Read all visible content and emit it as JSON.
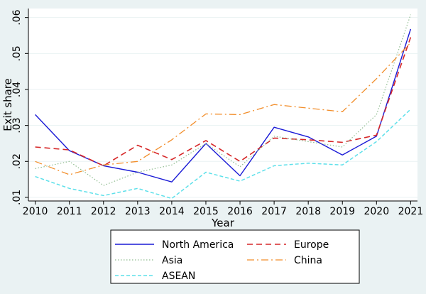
{
  "chart_data": {
    "type": "line",
    "title": "",
    "xlabel": "Year",
    "ylabel": "Exit share",
    "x": [
      2010,
      2011,
      2012,
      2013,
      2014,
      2015,
      2016,
      2017,
      2018,
      2019,
      2020,
      2021
    ],
    "x_tick_labels": [
      "2010",
      "2011",
      "2012",
      "2013",
      "2014",
      "2015",
      "2016",
      "2017",
      "2018",
      "2019",
      "2020",
      "2021"
    ],
    "y_ticks": [
      0.01,
      0.02,
      0.03,
      0.04,
      0.05,
      0.06
    ],
    "y_tick_labels": [
      ".01",
      ".02",
      ".03",
      ".04",
      ".05",
      ".06"
    ],
    "xlim": [
      2009.8,
      2021.2
    ],
    "ylim": [
      0.009,
      0.0625
    ],
    "grid": "horizontal",
    "legend_position": "bottom",
    "series": [
      {
        "name": "North America",
        "color": "#1a1ad6",
        "style": "solid",
        "values": [
          0.033,
          0.023,
          0.0188,
          0.017,
          0.0143,
          0.025,
          0.016,
          0.0295,
          0.0268,
          0.0218,
          0.027,
          0.0568
        ]
      },
      {
        "name": "Europe",
        "color": "#d62728",
        "style": "dash",
        "values": [
          0.024,
          0.0232,
          0.0188,
          0.0245,
          0.0205,
          0.0258,
          0.02,
          0.0265,
          0.026,
          0.0253,
          0.0273,
          0.0545
        ]
      },
      {
        "name": "Asia",
        "color": "#8fbc8f",
        "style": "dot",
        "values": [
          0.018,
          0.02,
          0.0133,
          0.017,
          0.019,
          0.025,
          0.0185,
          0.027,
          0.0255,
          0.024,
          0.033,
          0.0608
        ]
      },
      {
        "name": "China",
        "color": "#f28e2b",
        "style": "dashdot",
        "values": [
          0.02,
          0.0163,
          0.019,
          0.02,
          0.026,
          0.0332,
          0.033,
          0.0358,
          0.0348,
          0.0338,
          0.043,
          0.053
        ]
      },
      {
        "name": "ASEAN",
        "color": "#5de0ea",
        "style": "dash-short",
        "values": [
          0.0158,
          0.0125,
          0.0105,
          0.0125,
          0.0097,
          0.017,
          0.0145,
          0.0188,
          0.0195,
          0.019,
          0.0255,
          0.0345
        ]
      }
    ]
  }
}
